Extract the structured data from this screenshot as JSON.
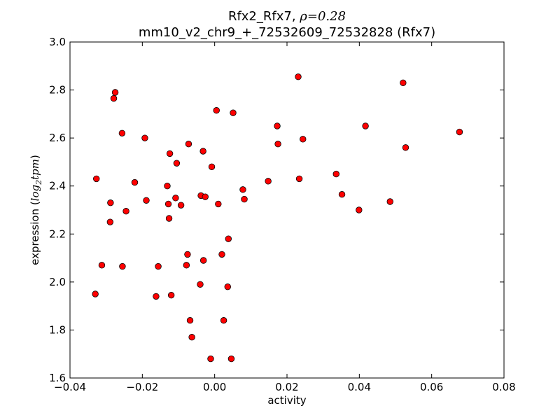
{
  "chart_data": {
    "type": "scatter",
    "title_prefix": "Rfx2_Rfx7, ",
    "title_stat_symbol": "ρ",
    "title_stat_value": "=0.28",
    "subtitle": "mm10_v2_chr9_+_72532609_72532828 (Rfx7)",
    "xlabel": "activity",
    "ylabel_prefix": "expression (",
    "ylabel_math": "log",
    "ylabel_sub": "2",
    "ylabel_math2": "tpm",
    "ylabel_suffix": ")",
    "xlim": [
      -0.04,
      0.08
    ],
    "ylim": [
      1.6,
      3.0
    ],
    "xticks": [
      -0.04,
      -0.02,
      0.0,
      0.02,
      0.04,
      0.06,
      0.08
    ],
    "xtick_labels": [
      "−0.04",
      "−0.02",
      "0.00",
      "0.02",
      "0.04",
      "0.06",
      "0.08"
    ],
    "yticks": [
      1.6,
      1.8,
      2.0,
      2.2,
      2.4,
      2.6,
      2.8,
      3.0
    ],
    "ytick_labels": [
      "1.6",
      "1.8",
      "2.0",
      "2.2",
      "2.4",
      "2.6",
      "2.8",
      "3.0"
    ],
    "grid": false,
    "marker_color": "#ff0000",
    "marker_edge_color": "#000000",
    "points": [
      {
        "x": -0.0327,
        "y": 2.43
      },
      {
        "x": -0.033,
        "y": 1.95
      },
      {
        "x": -0.0312,
        "y": 2.07
      },
      {
        "x": -0.0288,
        "y": 2.33
      },
      {
        "x": -0.0289,
        "y": 2.25
      },
      {
        "x": -0.0279,
        "y": 2.765
      },
      {
        "x": -0.0275,
        "y": 2.79
      },
      {
        "x": -0.0256,
        "y": 2.62
      },
      {
        "x": -0.0255,
        "y": 2.065
      },
      {
        "x": -0.0245,
        "y": 2.295
      },
      {
        "x": -0.0221,
        "y": 2.415
      },
      {
        "x": -0.0193,
        "y": 2.6
      },
      {
        "x": -0.0189,
        "y": 2.34
      },
      {
        "x": -0.0162,
        "y": 1.94
      },
      {
        "x": -0.0156,
        "y": 2.065
      },
      {
        "x": -0.0131,
        "y": 2.4
      },
      {
        "x": -0.0128,
        "y": 2.325
      },
      {
        "x": -0.0126,
        "y": 2.265
      },
      {
        "x": -0.0124,
        "y": 2.535
      },
      {
        "x": -0.012,
        "y": 1.945
      },
      {
        "x": -0.0108,
        "y": 2.35
      },
      {
        "x": -0.0105,
        "y": 2.495
      },
      {
        "x": -0.0093,
        "y": 2.32
      },
      {
        "x": -0.0078,
        "y": 2.07
      },
      {
        "x": -0.0075,
        "y": 2.115
      },
      {
        "x": -0.0072,
        "y": 2.575
      },
      {
        "x": -0.0068,
        "y": 1.84
      },
      {
        "x": -0.0063,
        "y": 1.77
      },
      {
        "x": -0.004,
        "y": 1.99
      },
      {
        "x": -0.0038,
        "y": 2.36
      },
      {
        "x": -0.0032,
        "y": 2.545
      },
      {
        "x": -0.0031,
        "y": 2.09
      },
      {
        "x": -0.0026,
        "y": 2.355
      },
      {
        "x": -0.0011,
        "y": 1.68
      },
      {
        "x": -0.0008,
        "y": 2.48
      },
      {
        "x": 0.0005,
        "y": 2.715
      },
      {
        "x": 0.001,
        "y": 2.325
      },
      {
        "x": 0.002,
        "y": 2.115
      },
      {
        "x": 0.0025,
        "y": 1.84
      },
      {
        "x": 0.0036,
        "y": 1.98
      },
      {
        "x": 0.0038,
        "y": 2.18
      },
      {
        "x": 0.0046,
        "y": 1.68
      },
      {
        "x": 0.0051,
        "y": 2.705
      },
      {
        "x": 0.0078,
        "y": 2.385
      },
      {
        "x": 0.0082,
        "y": 2.345
      },
      {
        "x": 0.0148,
        "y": 2.42
      },
      {
        "x": 0.0173,
        "y": 2.65
      },
      {
        "x": 0.0175,
        "y": 2.575
      },
      {
        "x": 0.0231,
        "y": 2.855
      },
      {
        "x": 0.0234,
        "y": 2.43
      },
      {
        "x": 0.0244,
        "y": 2.595
      },
      {
        "x": 0.0336,
        "y": 2.45
      },
      {
        "x": 0.0352,
        "y": 2.365
      },
      {
        "x": 0.0399,
        "y": 2.3
      },
      {
        "x": 0.0417,
        "y": 2.65
      },
      {
        "x": 0.0485,
        "y": 2.335
      },
      {
        "x": 0.0521,
        "y": 2.83
      },
      {
        "x": 0.0528,
        "y": 2.56
      },
      {
        "x": 0.0677,
        "y": 2.625
      }
    ]
  }
}
